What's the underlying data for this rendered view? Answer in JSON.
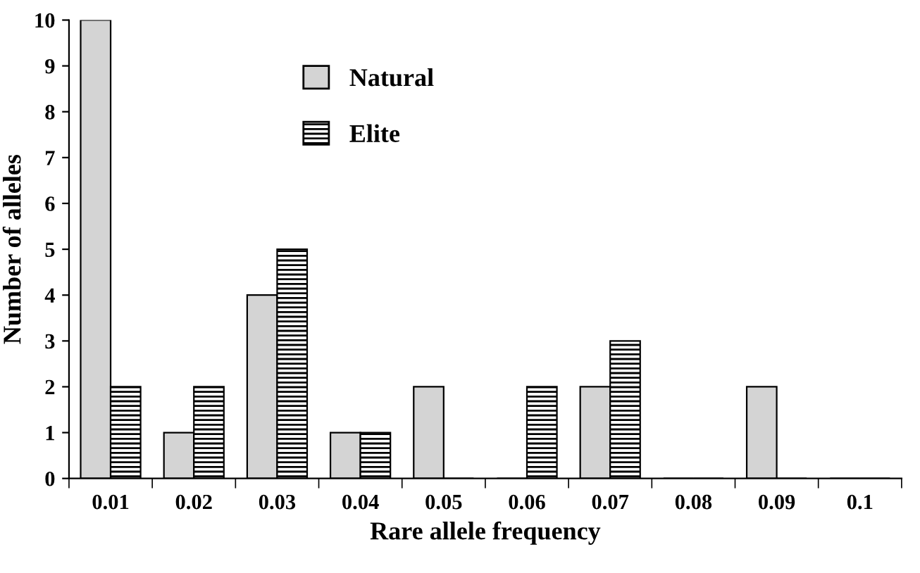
{
  "chart_data": {
    "type": "bar",
    "xlabel": "Rare allele frequency",
    "ylabel": "Number of alleles",
    "categories": [
      "0.01",
      "0.02",
      "0.03",
      "0.04",
      "0.05",
      "0.06",
      "0.07",
      "0.08",
      "0.09",
      "0.1"
    ],
    "series": [
      {
        "name": "Natural",
        "color": "#d4d4d4",
        "values": [
          10,
          1,
          4,
          1,
          2,
          0,
          2,
          0,
          2,
          0
        ]
      },
      {
        "name": "Elite",
        "color": "#000000",
        "values": [
          2,
          2,
          5,
          1,
          0,
          2,
          3,
          0,
          0,
          0
        ]
      }
    ],
    "ylim": [
      0,
      10
    ],
    "yticks": [
      0,
      1,
      2,
      3,
      4,
      5,
      6,
      7,
      8,
      9,
      10
    ],
    "grid": false,
    "legend": "top"
  }
}
